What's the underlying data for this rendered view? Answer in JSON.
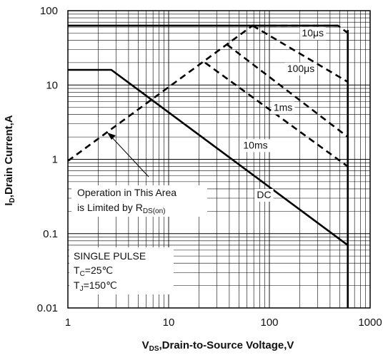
{
  "chart_data": {
    "type": "line",
    "x_scale": "log",
    "y_scale": "log",
    "xlim": [
      1,
      1000
    ],
    "ylim": [
      0.01,
      100
    ],
    "grid": true,
    "x_tick_labels": [
      "1",
      "10",
      "100",
      "1000"
    ],
    "y_tick_labels": [
      "100",
      "10",
      "1",
      "0.1",
      "0.01"
    ],
    "xlabel": {
      "v": "V",
      "sub": "DS",
      "rest": ",Drain-to-Source Voltage,V"
    },
    "ylabel": {
      "i": "I",
      "sub": "D",
      "rest": ",Drain Current,A"
    },
    "series": [
      {
        "name": "DC",
        "style": "solid",
        "color": "#000000",
        "x": [
          1,
          2.7,
          600
        ],
        "y": [
          16,
          16,
          0.07
        ]
      },
      {
        "name": "10ms",
        "style": "dashed",
        "color": "#000000",
        "x": [
          23,
          600
        ],
        "y": [
          20,
          0.8
        ]
      },
      {
        "name": "1ms",
        "style": "dashed",
        "color": "#000000",
        "x": [
          38,
          600
        ],
        "y": [
          35,
          2
        ]
      },
      {
        "name": "100μs",
        "style": "dashed",
        "color": "#000000",
        "x": [
          68,
          600
        ],
        "y": [
          63,
          11
        ]
      },
      {
        "name": "10μs",
        "style": "dashed",
        "color": "#000000",
        "x": [
          1,
          68,
          480,
          600
        ],
        "y": [
          0.95,
          63,
          63,
          50
        ]
      }
    ],
    "limits": [
      {
        "kind": "current",
        "style": "solid",
        "x": [
          1,
          480
        ],
        "y": [
          63,
          63
        ]
      },
      {
        "kind": "voltage",
        "style": "solid",
        "x": [
          600,
          600
        ],
        "y": [
          0.01,
          55
        ]
      }
    ],
    "series_labels": [
      {
        "text": "10μs",
        "x": 210,
        "y": 45
      },
      {
        "text": "100μs",
        "x": 150,
        "y": 15
      },
      {
        "text": "1ms",
        "x": 110,
        "y": 4.5
      },
      {
        "text": "10ms",
        "x": 55,
        "y": 1.4
      },
      {
        "text": "DC",
        "x": 75,
        "y": 0.3
      }
    ],
    "annotations": {
      "rds": {
        "line1": "Operation in This Area",
        "line2": "is Limited by R",
        "sub": "DS(on)"
      },
      "conditions": {
        "line1": "SINGLE PULSE",
        "tc": {
          "main": "T",
          "sub": "C",
          "rest": "=25℃"
        },
        "tj": {
          "main": "T",
          "sub": "J",
          "rest": "=150℃"
        }
      }
    }
  }
}
